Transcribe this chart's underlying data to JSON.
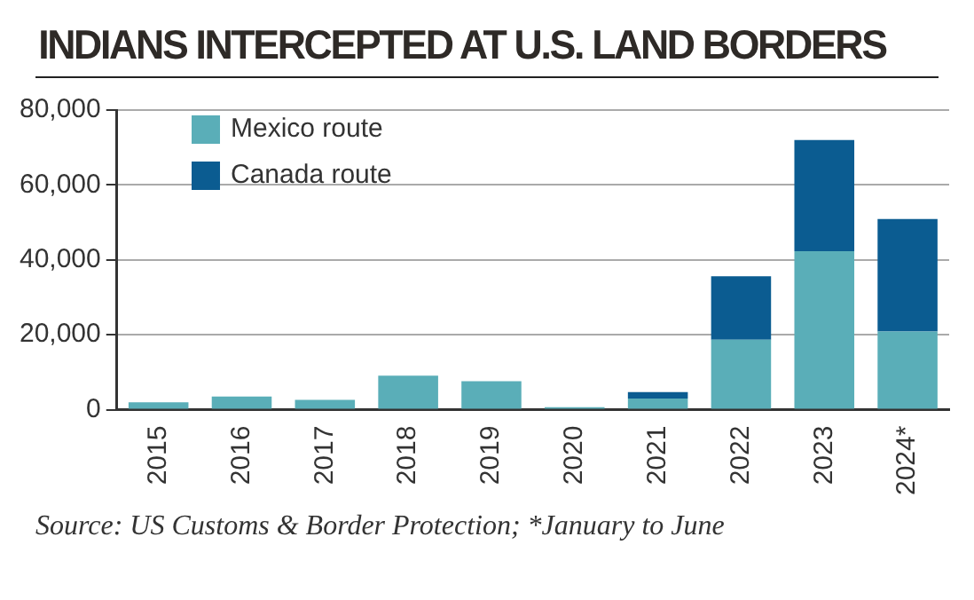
{
  "chart_data": {
    "type": "bar",
    "title": "INDIANS INTERCEPTED AT U.S. LAND BORDERS",
    "categories": [
      "2015",
      "2016",
      "2017",
      "2018",
      "2019",
      "2020",
      "2021",
      "2022",
      "2023",
      "2024*"
    ],
    "series": [
      {
        "name": "Mexico route",
        "color": "#5aaeb8",
        "values": [
          2000,
          3500,
          2600,
          9100,
          7600,
          700,
          3000,
          18700,
          42300,
          20900
        ]
      },
      {
        "name": "Canada route",
        "color": "#0b5c91",
        "values": [
          0,
          0,
          0,
          0,
          0,
          0,
          1700,
          16900,
          29700,
          30000
        ]
      }
    ],
    "stacked": true,
    "ylim": [
      0,
      80000
    ],
    "yticks": [
      {
        "value": 0,
        "label": "0"
      },
      {
        "value": 20000,
        "label": "20,000"
      },
      {
        "value": 40000,
        "label": "40,000"
      },
      {
        "value": 60000,
        "label": "60,000"
      },
      {
        "value": 80000,
        "label": "80,000"
      }
    ],
    "grid": "y",
    "legend": "top left",
    "annotations": [
      "Source: US Customs & Border Protection; *January to June"
    ]
  }
}
